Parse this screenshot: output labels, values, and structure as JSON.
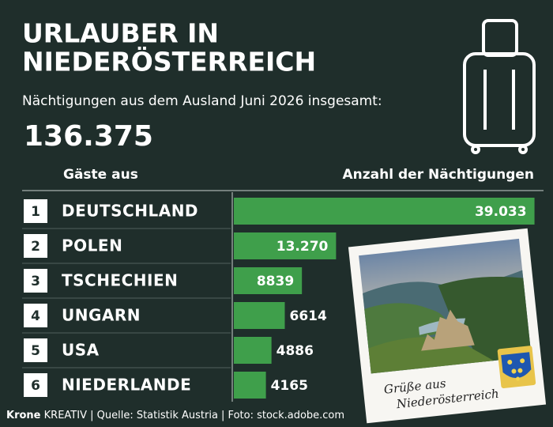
{
  "chart_data": {
    "type": "bar",
    "orientation": "horizontal",
    "title_lines": [
      "URLAUBER IN",
      "NIEDERÖSTERREICH"
    ],
    "subtitle": "Nächtigungen aus dem Ausland Juni 2026 insgesamt:",
    "total": {
      "value": 136375,
      "label": "136.375"
    },
    "column_headers": [
      "Gäste aus",
      "Anzahl der Nächtigungen"
    ],
    "ranks": [
      1,
      2,
      3,
      4,
      5,
      6
    ],
    "categories": [
      "DEUTSCHLAND",
      "POLEN",
      "TSCHECHIEN",
      "UNGARN",
      "USA",
      "NIEDERLANDE"
    ],
    "values": [
      39033,
      13270,
      8839,
      6614,
      4886,
      4165
    ],
    "value_labels": [
      "39.033",
      "13.270",
      "8839",
      "6614",
      "4886",
      "4165"
    ],
    "color": "#3f9f4b",
    "xlim": [
      0,
      40000
    ]
  },
  "postcard": {
    "caption_lines": [
      "Grüße aus",
      "Niederösterreich"
    ]
  },
  "footer": {
    "brand": "Krone",
    "brand_suffix": "KREATIV",
    "credits": "| Quelle: Statistik Austria | Foto: stock.adobe.com"
  }
}
